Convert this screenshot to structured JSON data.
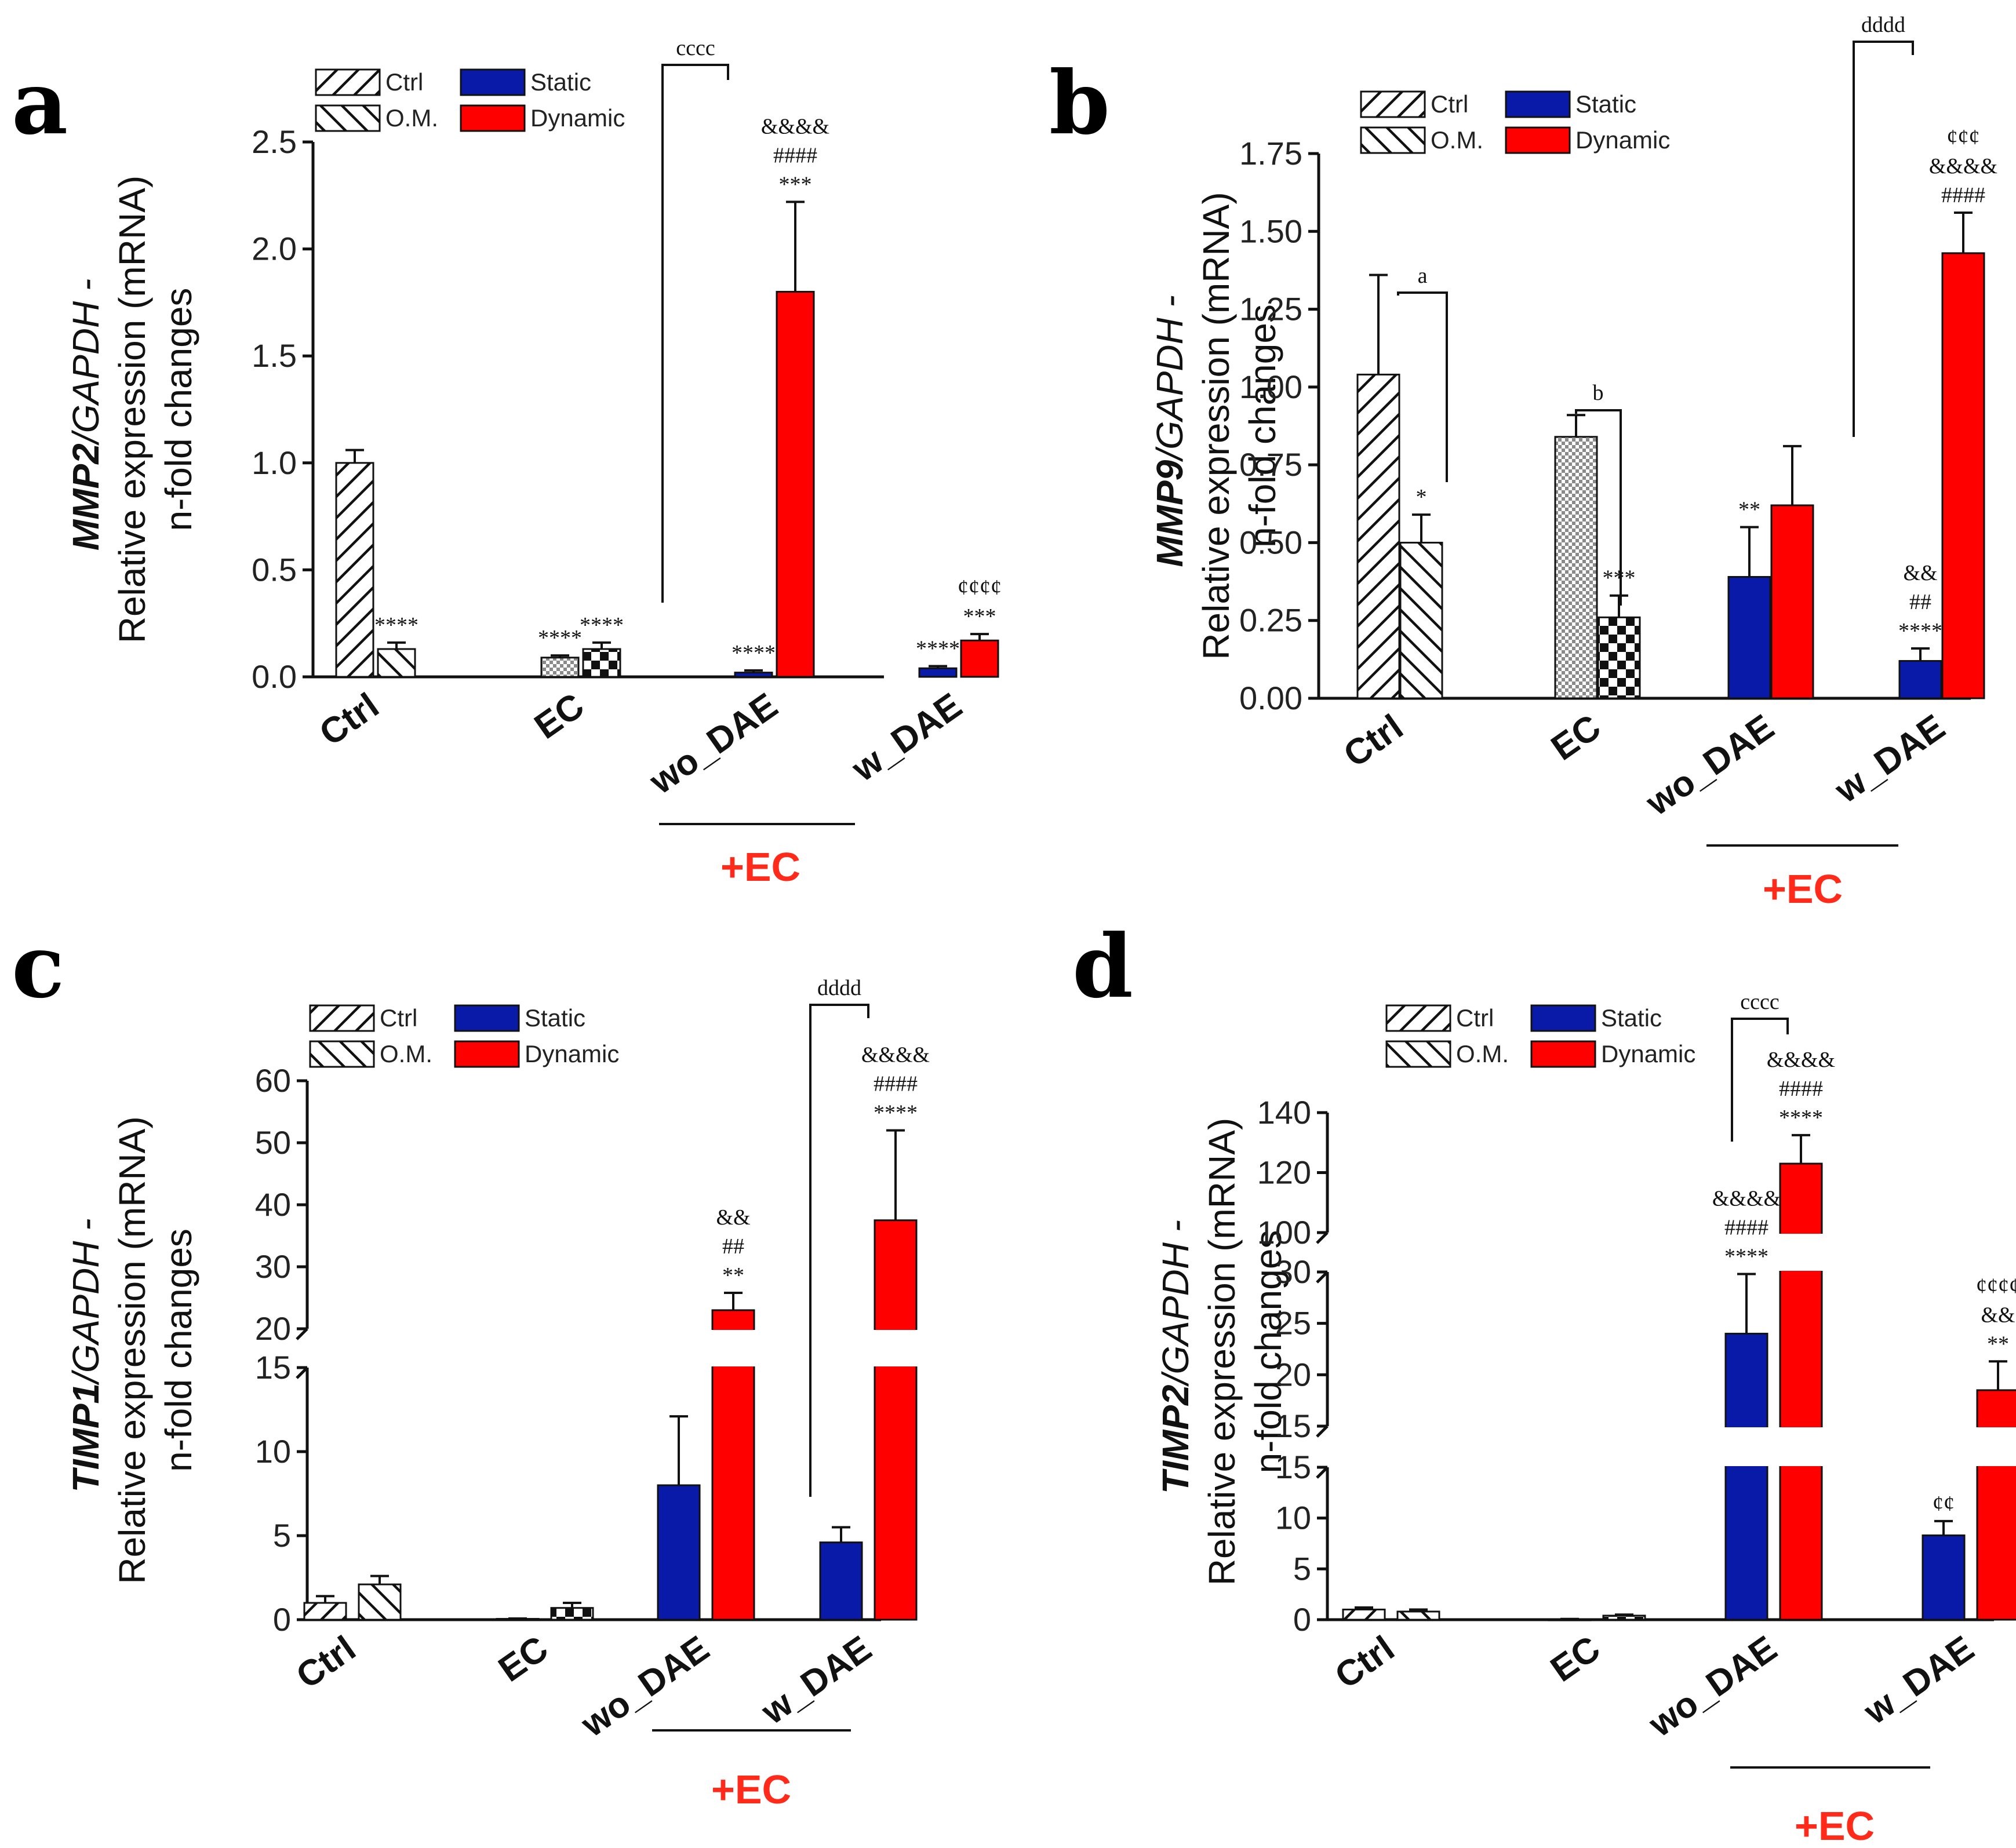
{
  "figure": {
    "colors": {
      "static": "#0a1aa8",
      "dynamic": "#ff0000",
      "axis": "#111111",
      "ec_label": "#ff2a1a"
    }
  },
  "chart_data": [
    {
      "panel": "a",
      "type": "bar",
      "ylabel": {
        "gene": "MMP2",
        "rest": "/GAPDH - ",
        "line2": "Relative expression (mRNA)",
        "line3": "n-fold changes"
      },
      "ylim": [
        0,
        2.5
      ],
      "ticks": [
        "0.0",
        "0.5",
        "1.0",
        "1.5",
        "2.0",
        "2.5"
      ],
      "categories": [
        "Ctrl",
        "EC",
        "wo_DAE",
        "w_DAE"
      ],
      "legend": [
        "Ctrl",
        "O.M.",
        "Static",
        "Dynamic"
      ],
      "group_label": "+EC",
      "bars": [
        {
          "group": "Ctrl",
          "series": "Ctrl",
          "value": 1.0,
          "err": 0.06,
          "ann": []
        },
        {
          "group": "Ctrl",
          "series": "O.M.",
          "value": 0.13,
          "err": 0.03,
          "ann": [
            "****"
          ]
        },
        {
          "group": "EC",
          "series": "Ctrl",
          "value": 0.09,
          "err": 0.01,
          "ann": [
            "****"
          ]
        },
        {
          "group": "EC",
          "series": "O.M.",
          "value": 0.13,
          "err": 0.03,
          "ann": [
            "****"
          ]
        },
        {
          "group": "wo_DAE",
          "series": "Static",
          "value": 0.02,
          "err": 0.01,
          "ann": [
            "****"
          ]
        },
        {
          "group": "wo_DAE",
          "series": "Dynamic",
          "value": 1.8,
          "err": 0.42,
          "ann": [
            "&&&&",
            "####",
            "***"
          ]
        },
        {
          "group": "w_DAE",
          "series": "Static",
          "value": 0.04,
          "err": 0.01,
          "ann": [
            "****"
          ]
        },
        {
          "group": "w_DAE",
          "series": "Dynamic",
          "value": 0.17,
          "err": 0.03,
          "ann": [
            "¢¢¢¢",
            "***"
          ]
        }
      ],
      "brackets": [
        {
          "text": "cccc"
        }
      ]
    },
    {
      "panel": "b",
      "type": "bar",
      "ylabel": {
        "gene": "MMP9",
        "rest": "/GAPDH - ",
        "line2": "Relative expression (mRNA)",
        "line3": "n-fold changes"
      },
      "ylim": [
        0,
        1.75
      ],
      "ticks": [
        "0.00",
        "0.25",
        "0.50",
        "0.75",
        "1.00",
        "1.25",
        "1.50",
        "1.75"
      ],
      "categories": [
        "Ctrl",
        "EC",
        "wo_DAE",
        "w_DAE"
      ],
      "legend": [
        "Ctrl",
        "O.M.",
        "Static",
        "Dynamic"
      ],
      "group_label": "+EC",
      "bars": [
        {
          "group": "Ctrl",
          "series": "Ctrl",
          "value": 1.04,
          "err": 0.32,
          "ann": []
        },
        {
          "group": "Ctrl",
          "series": "O.M.",
          "value": 0.5,
          "err": 0.09,
          "ann": [
            "*"
          ]
        },
        {
          "group": "EC",
          "series": "Ctrl",
          "value": 0.84,
          "err": 0.07,
          "ann": []
        },
        {
          "group": "EC",
          "series": "O.M.",
          "value": 0.26,
          "err": 0.07,
          "ann": [
            "***"
          ]
        },
        {
          "group": "wo_DAE",
          "series": "Static",
          "value": 0.39,
          "err": 0.16,
          "ann": [
            "**"
          ]
        },
        {
          "group": "wo_DAE",
          "series": "Dynamic",
          "value": 0.62,
          "err": 0.19,
          "ann": []
        },
        {
          "group": "w_DAE",
          "series": "Static",
          "value": 0.12,
          "err": 0.04,
          "ann": [
            "&&",
            "##",
            "****"
          ]
        },
        {
          "group": "w_DAE",
          "series": "Dynamic",
          "value": 1.43,
          "err": 0.13,
          "ann": [
            "¢¢¢",
            "&&&&",
            "####"
          ]
        }
      ],
      "brackets": [
        {
          "text": "a"
        },
        {
          "text": "b"
        },
        {
          "text": "dddd"
        }
      ]
    },
    {
      "panel": "c",
      "type": "bar",
      "ylabel": {
        "gene": "TIMP1",
        "rest": "/GAPDH - ",
        "line2": "Relative expression (mRNA)",
        "line3": "n-fold changes"
      },
      "broken_axis": {
        "lower": [
          0,
          15
        ],
        "upper": [
          20,
          60
        ]
      },
      "ticks_lower": [
        "0",
        "5",
        "10",
        "15"
      ],
      "ticks_upper": [
        "20",
        "30",
        "40",
        "50",
        "60"
      ],
      "categories": [
        "Ctrl",
        "EC",
        "wo_DAE",
        "w_DAE"
      ],
      "legend": [
        "Ctrl",
        "O.M.",
        "Static",
        "Dynamic"
      ],
      "group_label": "+EC",
      "bars": [
        {
          "group": "Ctrl",
          "series": "Ctrl",
          "value": 1.0,
          "err": 0.4,
          "ann": []
        },
        {
          "group": "Ctrl",
          "series": "O.M.",
          "value": 2.1,
          "err": 0.5,
          "ann": []
        },
        {
          "group": "EC",
          "series": "Ctrl",
          "value": 0.05,
          "err": 0.02,
          "ann": []
        },
        {
          "group": "EC",
          "series": "O.M.",
          "value": 0.7,
          "err": 0.3,
          "ann": []
        },
        {
          "group": "wo_DAE",
          "series": "Static",
          "value": 8.0,
          "err": 4.1,
          "ann": []
        },
        {
          "group": "wo_DAE",
          "series": "Dynamic",
          "value": 23.0,
          "err": 2.8,
          "ann": [
            "&&",
            "##",
            "**"
          ]
        },
        {
          "group": "w_DAE",
          "series": "Static",
          "value": 4.6,
          "err": 0.9,
          "ann": []
        },
        {
          "group": "w_DAE",
          "series": "Dynamic",
          "value": 37.5,
          "err": 14.5,
          "ann": [
            "&&&&",
            "####",
            "****"
          ]
        }
      ],
      "brackets": [
        {
          "text": "dddd"
        }
      ]
    },
    {
      "panel": "d",
      "type": "bar",
      "ylabel": {
        "gene": "TIMP2",
        "rest": "/GAPDH - ",
        "line2": "Relative expression (mRNA)",
        "line3": "n-fold changes"
      },
      "broken_axis": {
        "lower": [
          0,
          15
        ],
        "middle": [
          15,
          30
        ],
        "upper": [
          100,
          140
        ]
      },
      "ticks_lower": [
        "0",
        "5",
        "10",
        "15"
      ],
      "ticks_middle": [
        "15",
        "20",
        "25",
        "30"
      ],
      "ticks_upper": [
        "100",
        "120",
        "140"
      ],
      "categories": [
        "Ctrl",
        "EC",
        "wo_DAE",
        "w_DAE"
      ],
      "legend": [
        "Ctrl",
        "O.M.",
        "Static",
        "Dynamic"
      ],
      "group_label": "+EC",
      "bars": [
        {
          "group": "Ctrl",
          "series": "Ctrl",
          "value": 1.0,
          "err": 0.2,
          "ann": []
        },
        {
          "group": "Ctrl",
          "series": "O.M.",
          "value": 0.8,
          "err": 0.2,
          "ann": []
        },
        {
          "group": "EC",
          "series": "Ctrl",
          "value": 0.05,
          "err": 0.02,
          "ann": []
        },
        {
          "group": "EC",
          "series": "O.M.",
          "value": 0.4,
          "err": 0.1,
          "ann": []
        },
        {
          "group": "wo_DAE",
          "series": "Static",
          "value": 24.0,
          "err": 5.8,
          "ann": [
            "&&&&",
            "####",
            "****"
          ]
        },
        {
          "group": "wo_DAE",
          "series": "Dynamic",
          "value": 123.0,
          "err": 9.5,
          "ann": [
            "&&&&",
            "####",
            "****"
          ]
        },
        {
          "group": "w_DAE",
          "series": "Static",
          "value": 8.3,
          "err": 1.4,
          "ann": [
            "¢¢"
          ]
        },
        {
          "group": "w_DAE",
          "series": "Dynamic",
          "value": 18.5,
          "err": 2.8,
          "ann": [
            "¢¢¢¢",
            "&&",
            "**"
          ]
        }
      ],
      "brackets": [
        {
          "text": "cccc"
        }
      ]
    }
  ]
}
